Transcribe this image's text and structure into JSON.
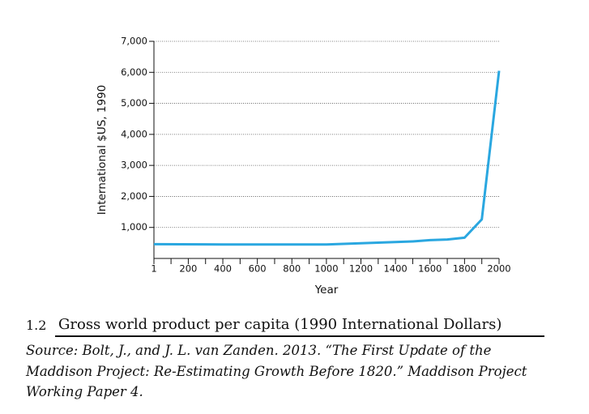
{
  "chart_data": {
    "type": "line",
    "y_label": "International $US, 1990",
    "x_label": "Year",
    "x": [
      1,
      400,
      1000,
      1500,
      1600,
      1700,
      1800,
      1900,
      2000
    ],
    "series": [
      {
        "name": "Gross world product per capita",
        "color": "#2aa7e0",
        "values": [
          460,
          450,
          450,
          550,
          590,
          610,
          670,
          1260,
          6050
        ]
      }
    ],
    "xlim": [
      1,
      2000
    ],
    "xticks": [
      1,
      200,
      400,
      600,
      800,
      1000,
      1200,
      1400,
      1600,
      1800,
      2000
    ],
    "xminorticks": [
      100,
      300,
      500,
      700,
      900,
      1100,
      1300,
      1500,
      1700,
      1900
    ],
    "ylim": [
      0,
      7000
    ],
    "yticks": [
      {
        "value": 1000,
        "label": "1,000"
      },
      {
        "value": 2000,
        "label": "2,000"
      },
      {
        "value": 3000,
        "label": "3,000"
      },
      {
        "value": 4000,
        "label": "4,000"
      },
      {
        "value": 5000,
        "label": "5,000"
      },
      {
        "value": 6000,
        "label": "6,000"
      },
      {
        "value": 7000,
        "label": "7,000"
      }
    ],
    "grid": true
  },
  "caption": {
    "number": "1.2",
    "title": "Gross world product per capita (1990 International Dollars)",
    "source_lines": [
      "Source: Bolt, J., and J. L. van Zanden. 2013. “The First Update of the",
      "Maddison Project: Re-Estimating Growth Before 1820.” Maddison Project",
      "Working Paper 4."
    ]
  }
}
